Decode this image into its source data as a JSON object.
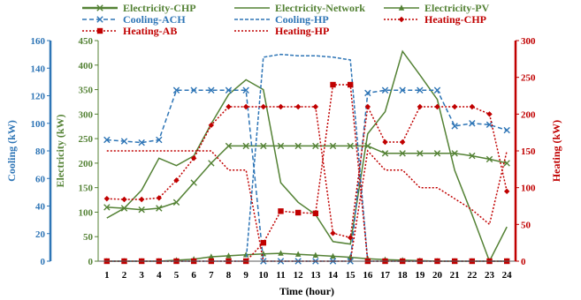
{
  "chart_data": {
    "type": "line",
    "xlabel": "Time (hour)",
    "x": [
      1,
      2,
      3,
      4,
      5,
      6,
      7,
      8,
      9,
      10,
      11,
      12,
      13,
      14,
      15,
      16,
      17,
      18,
      19,
      20,
      21,
      22,
      23,
      24
    ],
    "axes": {
      "cooling": {
        "label": "Cooling  (kW)",
        "ylim": [
          0,
          160
        ],
        "ticks": [
          0,
          20,
          40,
          60,
          80,
          100,
          120,
          140,
          160
        ],
        "color": "#2E75B6"
      },
      "electricity": {
        "label": "Electricity (kW)",
        "ylim": [
          0,
          450
        ],
        "ticks": [
          0,
          50,
          100,
          150,
          200,
          250,
          300,
          350,
          400,
          450
        ],
        "color": "#548235"
      },
      "heating": {
        "label": "Heating (kW)",
        "ylim": [
          0,
          300
        ],
        "ticks": [
          0,
          50,
          100,
          150,
          200,
          250,
          300
        ],
        "color": "#C00000"
      }
    },
    "legend_position": "top",
    "series": [
      {
        "name": "Electricity-CHP",
        "axis": "electricity",
        "color": "#548235",
        "marker": "x",
        "dash": "",
        "values": [
          110,
          108,
          105,
          108,
          120,
          160,
          200,
          235,
          235,
          235,
          235,
          235,
          235,
          235,
          235,
          235,
          220,
          220,
          220,
          220,
          220,
          215,
          208,
          200
        ]
      },
      {
        "name": "Electricity-Network",
        "axis": "electricity",
        "color": "#548235",
        "marker": "none",
        "dash": "",
        "values": [
          88,
          108,
          145,
          210,
          195,
          215,
          280,
          340,
          370,
          350,
          160,
          120,
          95,
          40,
          35,
          260,
          305,
          428,
          380,
          330,
          185,
          95,
          0,
          70
        ]
      },
      {
        "name": "Electricity-PV",
        "axis": "electricity",
        "color": "#548235",
        "marker": "triangle",
        "dash": "",
        "values": [
          0,
          0,
          0,
          0,
          2,
          4,
          9,
          11,
          13,
          15,
          16,
          14,
          12,
          10,
          8,
          5,
          3,
          2,
          1,
          0,
          0,
          0,
          0,
          0
        ]
      },
      {
        "name": "Cooling-ACH",
        "axis": "cooling",
        "color": "#2E75B6",
        "marker": "x",
        "dash": "5,3",
        "values": [
          88,
          87,
          86,
          88,
          124,
          124,
          124,
          124,
          124,
          0,
          0,
          0,
          0,
          0,
          0,
          122,
          124,
          124,
          124,
          124,
          98,
          100,
          99,
          95
        ]
      },
      {
        "name": "Cooling-HP",
        "axis": "cooling",
        "color": "#2E75B6",
        "marker": "none",
        "dash": "4,2",
        "values": [
          0,
          0,
          0,
          0,
          0,
          0,
          0,
          0,
          0,
          148,
          150,
          149,
          149,
          148,
          146,
          0,
          0,
          0,
          0,
          0,
          0,
          0,
          0,
          0
        ]
      },
      {
        "name": "Heating-CHP",
        "axis": "heating",
        "color": "#C00000",
        "marker": "diamond",
        "dash": "2,2",
        "values": [
          85,
          84,
          84,
          86,
          110,
          140,
          185,
          210,
          210,
          210,
          210,
          210,
          210,
          38,
          32,
          210,
          162,
          162,
          210,
          210,
          210,
          210,
          200,
          95
        ]
      },
      {
        "name": "Heating-AB",
        "axis": "heating",
        "color": "#C00000",
        "marker": "square",
        "dash": "2,2",
        "values": [
          0,
          0,
          0,
          0,
          0,
          0,
          0,
          0,
          0,
          25,
          68,
          66,
          65,
          240,
          240,
          0,
          0,
          0,
          0,
          0,
          0,
          0,
          0,
          0
        ]
      },
      {
        "name": "Heating-HP",
        "axis": "heating",
        "color": "#C00000",
        "marker": "none",
        "dash": "2,2",
        "values": [
          150,
          150,
          150,
          150,
          150,
          150,
          150,
          124,
          124,
          0,
          0,
          0,
          0,
          0,
          0,
          150,
          124,
          124,
          100,
          100,
          85,
          70,
          50,
          150
        ]
      }
    ]
  }
}
